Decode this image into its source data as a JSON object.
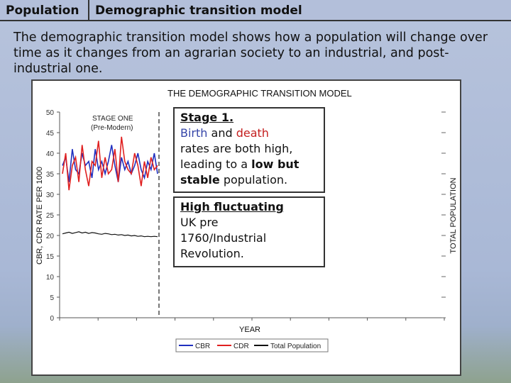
{
  "header": {
    "section": "Population",
    "title": "Demographic transition model"
  },
  "intro": "The demographic transition model shows how a population will change over time as it changes from an agrarian society to an industrial, and post-industrial one.",
  "figure": {
    "title": "THE DEMOGRAPHIC TRANSITION MODEL",
    "stage_label": "STAGE ONE",
    "stage_sub": "(Pre-Modern)"
  },
  "chart_data": {
    "type": "line",
    "title": "THE DEMOGRAPHIC TRANSITION MODEL",
    "xlabel": "YEAR",
    "ylabel": "CBR, CDR RATE PER 1000",
    "y2label": "TOTAL POPULATION",
    "ylim": [
      0,
      50
    ],
    "yticks": [
      "50",
      "45",
      "40",
      "35",
      "30",
      "25",
      "20",
      "15",
      "10",
      "5",
      "0"
    ],
    "series": [
      {
        "name": "CBR",
        "color": "#1f2fbf",
        "values": [
          37,
          39,
          33,
          41,
          36,
          35,
          40,
          37,
          38,
          34,
          41,
          36,
          38,
          35,
          38,
          42,
          37,
          33,
          39,
          36,
          38,
          35,
          37,
          40,
          36,
          34,
          38,
          36,
          40,
          35
        ]
      },
      {
        "name": "CDR",
        "color": "#e02020",
        "values": [
          35,
          40,
          31,
          37,
          39,
          33,
          42,
          36,
          32,
          38,
          37,
          43,
          34,
          39,
          35,
          36,
          41,
          33,
          44,
          38,
          36,
          35,
          40,
          37,
          32,
          38,
          34,
          39,
          36,
          37
        ]
      },
      {
        "name": "Total Population",
        "color": "#111111",
        "values": [
          20.4,
          20.6,
          20.8,
          20.5,
          20.7,
          20.9,
          20.6,
          20.8,
          20.5,
          20.7,
          20.6,
          20.4,
          20.3,
          20.5,
          20.4,
          20.2,
          20.3,
          20.1,
          20.2,
          20.0,
          20.1,
          19.9,
          20.0,
          19.8,
          19.9,
          19.7,
          19.8,
          19.7,
          19.8,
          19.7
        ]
      }
    ],
    "legend": "bottom"
  },
  "box1": {
    "heading": "Stage 1.",
    "w_birth": "Birth",
    "w_and": " and ",
    "w_death": "death",
    "l2": "rates are both high,",
    "l3a": "leading to a ",
    "w_lowbut": "low but",
    "w_stable": "stable",
    "l4b": " population."
  },
  "box2": {
    "heading": "High fluctuating",
    "l1": "UK pre",
    "l2": "1760/Industrial",
    "l3": "Revolution."
  }
}
